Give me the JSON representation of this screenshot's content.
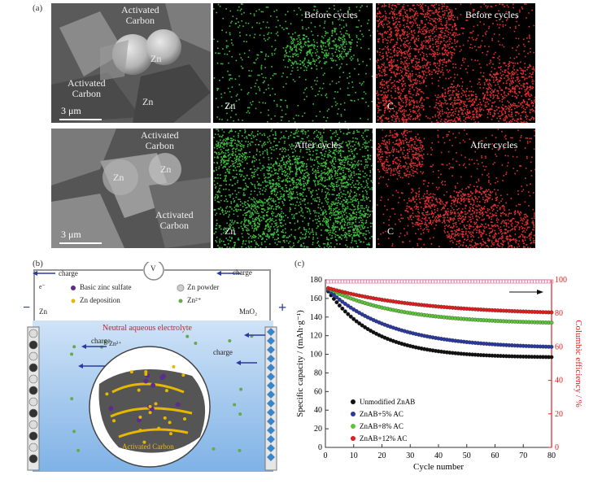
{
  "panel_a": {
    "label": "(a)",
    "sem_top": {
      "labels": [
        "Activated\nCarbon",
        "Zn",
        "Activated\nCarbon",
        "Zn"
      ],
      "scale": "3 μm"
    },
    "zn_top": {
      "caption": "Before cycles",
      "element": "Zn"
    },
    "c_top": {
      "caption": "Before cycles",
      "element": "C"
    },
    "sem_bottom": {
      "labels": [
        "Activated\nCarbon",
        "Zn",
        "Zn",
        "Activated\nCarbon"
      ],
      "scale": "3 μm"
    },
    "zn_bottom": {
      "caption": "After cycles",
      "element": "Zn"
    },
    "c_bottom": {
      "caption": "After cycles",
      "element": "C"
    },
    "colors": {
      "zn_map": "#3fbf3f",
      "c_map": "#e03030"
    }
  },
  "panel_b": {
    "label": "(b)",
    "voltmeter": "V",
    "charge_labels": [
      "charge",
      "charge",
      "charge",
      "charge"
    ],
    "electron": "e⁻",
    "anode": "Zn",
    "cathode": "MnO₂",
    "minus": "−",
    "plus": "+",
    "electrolyte": "Neutral aqueous electrolyte",
    "zn_ion": "Zn²⁺",
    "activated_carbon": "Activated Carbon",
    "legend": [
      "Basic zinc sulfate",
      "Zn powder",
      "Zn deposition",
      "Zn²⁺"
    ],
    "colors": {
      "purple": "#5b2d8e",
      "yellow": "#e6b800",
      "green": "#6aa84f",
      "grey": "#cccccc",
      "electrolyte": "#9fc8ee",
      "diamond": "#3a86c8"
    }
  },
  "chart_data": {
    "label": "(c)",
    "type": "scatter",
    "xlabel": "Cycle number",
    "ylabel": "Specific capacity / (mAh·g⁻¹)",
    "y2label": "Columbic efficiency / %",
    "xlim": [
      0,
      80
    ],
    "ylim": [
      0,
      180
    ],
    "y2lim": [
      0,
      100
    ],
    "xticks": [
      0,
      10,
      20,
      30,
      40,
      50,
      60,
      70,
      80
    ],
    "yticks": [
      0,
      20,
      40,
      60,
      80,
      100,
      120,
      140,
      160,
      180
    ],
    "y2ticks": [
      0,
      20,
      40,
      60,
      80,
      100
    ],
    "legend_position": "lower-left",
    "series": [
      {
        "name": "Unmodified ZnAB",
        "color": "#111111",
        "start": 172,
        "end": 97,
        "k": 0.06
      },
      {
        "name": "ZnAB+5% AC",
        "color": "#2b3a9e",
        "start": 172,
        "end": 108,
        "k": 0.045
      },
      {
        "name": "ZnAB+8% AC",
        "color": "#5dc43a",
        "start": 172,
        "end": 134,
        "k": 0.04
      },
      {
        "name": "ZnAB+12% AC",
        "color": "#e02020",
        "start": 172,
        "end": 145,
        "k": 0.03
      }
    ],
    "efficiency": {
      "color": "#e88ab0",
      "value": 99
    }
  }
}
